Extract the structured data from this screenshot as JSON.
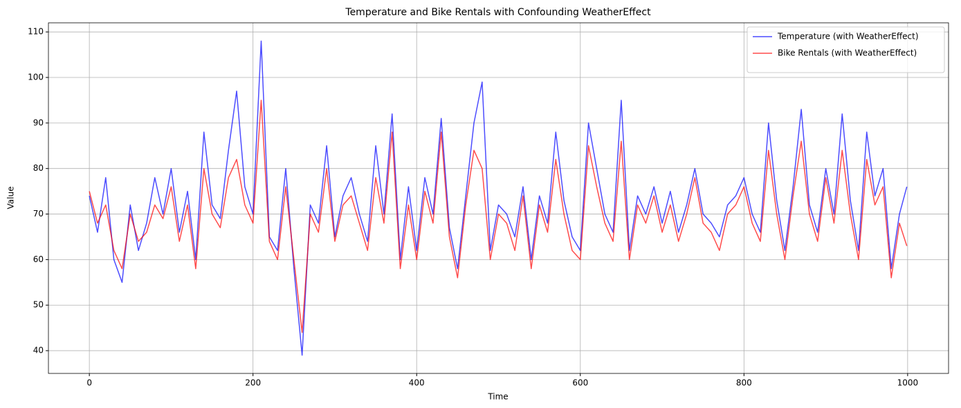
{
  "chart_data": {
    "type": "line",
    "title": "Temperature and Bike Rentals with Confounding WeatherEffect",
    "xlabel": "Time",
    "ylabel": "Value",
    "x": [
      0,
      10,
      20,
      30,
      40,
      50,
      60,
      70,
      80,
      90,
      100,
      110,
      120,
      130,
      140,
      150,
      160,
      170,
      180,
      190,
      200,
      210,
      220,
      230,
      240,
      250,
      260,
      270,
      280,
      290,
      300,
      310,
      320,
      330,
      340,
      350,
      360,
      370,
      380,
      390,
      400,
      410,
      420,
      430,
      440,
      450,
      460,
      470,
      480,
      490,
      500,
      510,
      520,
      530,
      540,
      550,
      560,
      570,
      580,
      590,
      600,
      610,
      620,
      630,
      640,
      650,
      660,
      670,
      680,
      690,
      700,
      710,
      720,
      730,
      740,
      750,
      760,
      770,
      780,
      790,
      800,
      810,
      820,
      830,
      840,
      850,
      860,
      870,
      880,
      890,
      900,
      910,
      920,
      930,
      940,
      950,
      960,
      970,
      980,
      990,
      999
    ],
    "series": [
      {
        "name": "Temperature (with WeatherEffect)",
        "color": "#0000ff",
        "values": [
          74,
          66,
          78,
          60,
          55,
          72,
          62,
          68,
          78,
          70,
          80,
          66,
          75,
          60,
          88,
          72,
          69,
          84,
          97,
          76,
          70,
          108,
          65,
          62,
          80,
          58,
          39,
          72,
          68,
          85,
          65,
          74,
          78,
          70,
          64,
          85,
          70,
          92,
          60,
          76,
          62,
          78,
          70,
          91,
          67,
          58,
          74,
          90,
          99,
          62,
          72,
          70,
          65,
          76,
          60,
          74,
          68,
          88,
          73,
          65,
          62,
          90,
          80,
          70,
          66,
          95,
          62,
          74,
          70,
          76,
          68,
          75,
          66,
          72,
          80,
          70,
          68,
          65,
          72,
          74,
          78,
          70,
          66,
          90,
          73,
          62,
          76,
          93,
          72,
          66,
          80,
          70,
          92,
          73,
          62,
          88,
          74,
          80,
          58,
          70,
          76
        ]
      },
      {
        "name": "Bike Rentals (with WeatherEffect)",
        "color": "#ff0000",
        "values": [
          75,
          68,
          72,
          62,
          58,
          70,
          64,
          66,
          72,
          69,
          76,
          64,
          72,
          58,
          80,
          70,
          67,
          78,
          82,
          72,
          68,
          95,
          64,
          60,
          76,
          60,
          44,
          70,
          66,
          80,
          64,
          72,
          74,
          68,
          62,
          78,
          68,
          88,
          58,
          72,
          60,
          75,
          68,
          88,
          65,
          56,
          72,
          84,
          80,
          60,
          70,
          68,
          62,
          74,
          58,
          72,
          66,
          82,
          70,
          62,
          60,
          85,
          76,
          68,
          64,
          86,
          60,
          72,
          68,
          74,
          66,
          72,
          64,
          70,
          78,
          68,
          66,
          62,
          70,
          72,
          76,
          68,
          64,
          84,
          70,
          60,
          74,
          86,
          70,
          64,
          78,
          68,
          84,
          70,
          60,
          82,
          72,
          76,
          56,
          68,
          63
        ]
      }
    ],
    "alpha": 0.7,
    "xlim": [
      -50,
      1050
    ],
    "xticks": [
      0,
      200,
      400,
      600,
      800,
      1000
    ],
    "ylim": [
      35,
      112
    ],
    "yticks": [
      40,
      50,
      60,
      70,
      80,
      90,
      100,
      110
    ],
    "grid": true,
    "legend": "upper right"
  }
}
